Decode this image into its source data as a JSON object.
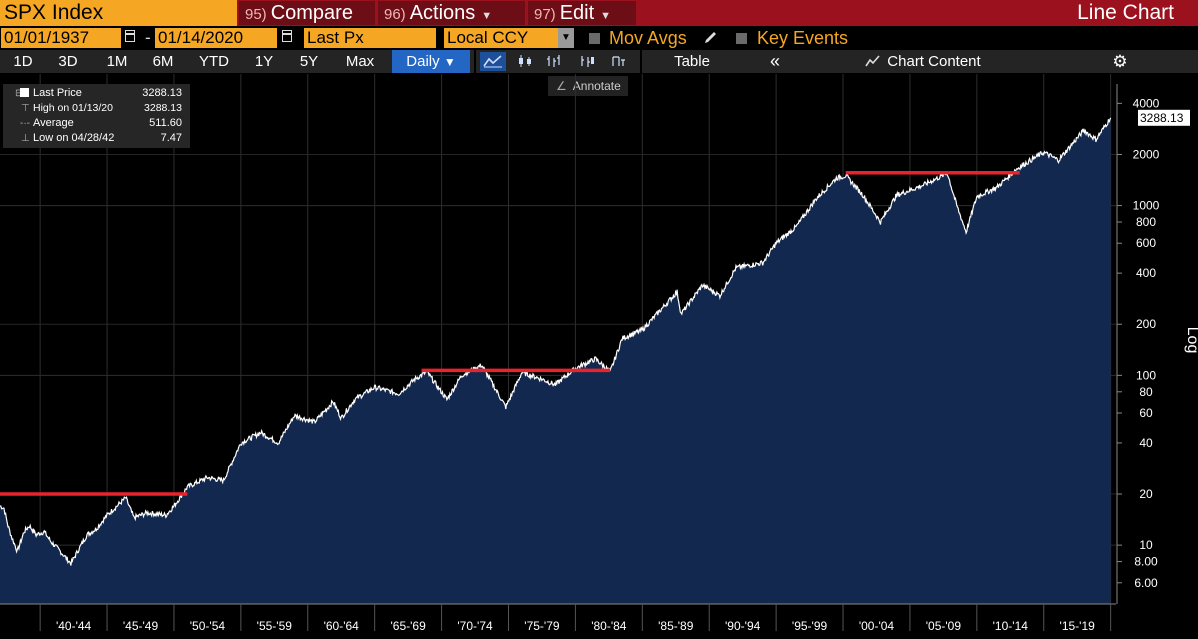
{
  "header": {
    "ticker": "SPX Index",
    "compare": {
      "num": "95)",
      "label": "Compare"
    },
    "actions": {
      "num": "96)",
      "label": "Actions"
    },
    "edit": {
      "num": "97)",
      "label": "Edit"
    },
    "chart_type": "Line Chart"
  },
  "controls": {
    "start_date": "01/01/1937",
    "end_date": "01/14/2020",
    "separator": "-",
    "field": "Last Px",
    "currency": "Local CCY",
    "mov_avgs": "Mov Avgs",
    "key_events": "Key Events"
  },
  "toolbar": {
    "ranges": [
      "1D",
      "3D",
      "1M",
      "6M",
      "YTD",
      "1Y",
      "5Y",
      "Max"
    ],
    "frequency": "Daily",
    "table": "Table",
    "collapse": "«",
    "chart_content": "Chart Content",
    "annotate": "Annotate"
  },
  "legend": {
    "last_price": {
      "label": "Last Price",
      "value": "3288.13"
    },
    "high": {
      "label": "High on 01/13/20",
      "value": "3288.13"
    },
    "average": {
      "label": "Average",
      "value": "511.60"
    },
    "low": {
      "label": "Low on 04/28/42",
      "value": "7.47"
    }
  },
  "colors": {
    "header": "#9b111e",
    "ticker_bg": "#f5a623",
    "area_fill": "#13284f",
    "line": "#ffffff",
    "highlight": "#e8232b"
  },
  "chart_data": {
    "type": "line",
    "scale": "log",
    "ylabel": "Log",
    "ylim": [
      4.5,
      5200
    ],
    "xlim": [
      1937.0,
      2020.4
    ],
    "y_ticks": [
      6,
      8,
      10,
      20,
      40,
      60,
      80,
      100,
      200,
      400,
      600,
      800,
      1000,
      2000,
      4000
    ],
    "y_tick_labels": [
      "6.00",
      "8.00",
      "10",
      "20",
      "40",
      "60",
      "80",
      "100",
      "200",
      "400",
      "600",
      "800",
      "1000",
      "2000",
      "4000"
    ],
    "last_value_label": "3288.13",
    "x_tick_labels": [
      "'40-'44",
      "'45-'49",
      "'50-'54",
      "'55-'59",
      "'60-'64",
      "'65-'69",
      "'70-'74",
      "'75-'79",
      "'80-'84",
      "'85-'89",
      "'90-'94",
      "'95-'99",
      "'00-'04",
      "'05-'09",
      "'10-'14",
      "'15-'19"
    ],
    "x_bin_bounds": [
      1940,
      1945,
      1950,
      1955,
      1960,
      1965,
      1970,
      1975,
      1980,
      1985,
      1990,
      1995,
      2000,
      2005,
      2010,
      2015,
      2020
    ],
    "grid": true,
    "series": [
      {
        "values_x": [
          1937.0,
          1937.3,
          1937.6,
          1937.9,
          1938.3,
          1938.8,
          1939.2,
          1939.7,
          1940.3,
          1940.8,
          1941.5,
          1942.3,
          1942.9,
          1943.5,
          1944.2,
          1945.0,
          1946.4,
          1947.0,
          1948.0,
          1949.4,
          1950.0,
          1951.0,
          1952.5,
          1953.7,
          1955.0,
          1956.5,
          1957.8,
          1959.0,
          1960.5,
          1961.9,
          1962.5,
          1963.5,
          1965.0,
          1966.8,
          1968.0,
          1968.9,
          1970.4,
          1971.5,
          1973.0,
          1974.8,
          1976.0,
          1977.5,
          1978.5,
          1980.0,
          1981.5,
          1982.6,
          1983.5,
          1985.0,
          1987.6,
          1987.9,
          1989.5,
          1990.8,
          1992.0,
          1994.0,
          1995.0,
          1996.5,
          1998.0,
          1999.5,
          2000.2,
          2001.5,
          2002.8,
          2004.0,
          2006.0,
          2007.8,
          2008.5,
          2009.2,
          2010.0,
          2011.5,
          2013.0,
          2015.0,
          2016.1,
          2018.0,
          2018.9,
          2020.0
        ],
        "values_y": [
          17,
          16.5,
          13,
          11,
          9.2,
          12,
          13,
          11.5,
          12,
          10.5,
          9.2,
          7.8,
          9.5,
          11.5,
          12.5,
          15,
          19,
          14.5,
          15.5,
          15,
          17,
          22,
          25,
          24,
          40,
          46,
          40,
          58,
          53,
          70,
          56,
          72,
          85,
          78,
          95,
          105,
          72,
          100,
          115,
          65,
          104,
          95,
          88,
          110,
          125,
          105,
          165,
          185,
          310,
          230,
          340,
          295,
          430,
          460,
          600,
          750,
          1100,
          1450,
          1500,
          1150,
          800,
          1150,
          1320,
          1550,
          1000,
          700,
          1130,
          1280,
          1650,
          2060,
          1850,
          2780,
          2450,
          3288
        ]
      }
    ],
    "highlight_lines": [
      {
        "x0": 1937.0,
        "x1": 1951.0,
        "y": 20
      },
      {
        "x0": 1968.5,
        "x1": 1982.6,
        "y": 107
      },
      {
        "x0": 2000.2,
        "x1": 2013.2,
        "y": 1560
      }
    ]
  }
}
